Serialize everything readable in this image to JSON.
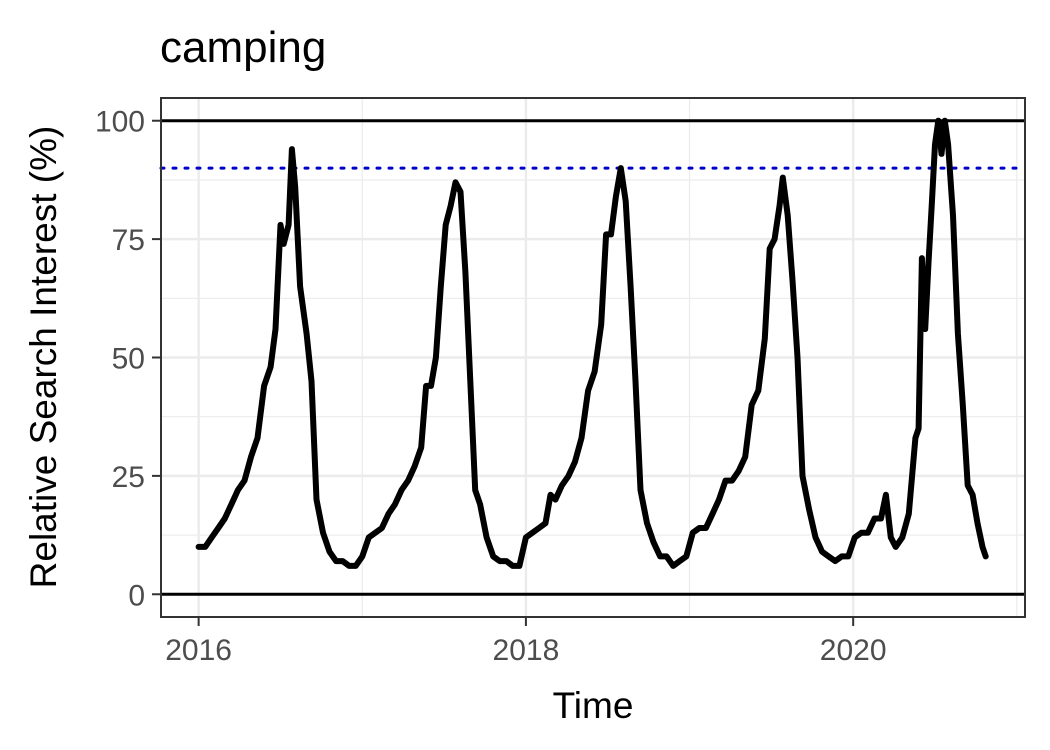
{
  "chart_data": {
    "type": "line",
    "title": "camping",
    "xlabel": "Time",
    "ylabel": "Relative Search Interest (%)",
    "x_ticks": [
      "2016",
      "2018",
      "2020"
    ],
    "y_ticks": [
      "0",
      "25",
      "50",
      "75",
      "100"
    ],
    "xlim": [
      2015.77,
      2021.05
    ],
    "ylim": [
      -4.8,
      104.8
    ],
    "grid": true,
    "reference_lines": [
      {
        "y": 100,
        "style": "solid",
        "color": "#000000"
      },
      {
        "y": 0,
        "style": "solid",
        "color": "#000000"
      },
      {
        "y": 90,
        "style": "dotted",
        "color": "#0000cc"
      }
    ],
    "series": [
      {
        "color": "#000000",
        "points": [
          [
            2016.0,
            10
          ],
          [
            2016.04,
            10
          ],
          [
            2016.08,
            12
          ],
          [
            2016.12,
            14
          ],
          [
            2016.16,
            16
          ],
          [
            2016.2,
            19
          ],
          [
            2016.24,
            22
          ],
          [
            2016.28,
            24
          ],
          [
            2016.32,
            29
          ],
          [
            2016.36,
            33
          ],
          [
            2016.4,
            44
          ],
          [
            2016.44,
            48
          ],
          [
            2016.47,
            56
          ],
          [
            2016.5,
            78
          ],
          [
            2016.52,
            74
          ],
          [
            2016.55,
            78
          ],
          [
            2016.57,
            94
          ],
          [
            2016.59,
            86
          ],
          [
            2016.62,
            65
          ],
          [
            2016.66,
            55
          ],
          [
            2016.69,
            45
          ],
          [
            2016.72,
            20
          ],
          [
            2016.76,
            13
          ],
          [
            2016.8,
            9
          ],
          [
            2016.84,
            7
          ],
          [
            2016.88,
            7
          ],
          [
            2016.92,
            6
          ],
          [
            2016.96,
            6
          ],
          [
            2017.0,
            8
          ],
          [
            2017.04,
            12
          ],
          [
            2017.08,
            13
          ],
          [
            2017.12,
            14
          ],
          [
            2017.16,
            17
          ],
          [
            2017.2,
            19
          ],
          [
            2017.24,
            22
          ],
          [
            2017.28,
            24
          ],
          [
            2017.32,
            27
          ],
          [
            2017.36,
            31
          ],
          [
            2017.39,
            44
          ],
          [
            2017.42,
            44
          ],
          [
            2017.45,
            50
          ],
          [
            2017.48,
            65
          ],
          [
            2017.51,
            78
          ],
          [
            2017.54,
            82
          ],
          [
            2017.57,
            87
          ],
          [
            2017.6,
            85
          ],
          [
            2017.63,
            68
          ],
          [
            2017.66,
            45
          ],
          [
            2017.69,
            22
          ],
          [
            2017.72,
            19
          ],
          [
            2017.76,
            12
          ],
          [
            2017.8,
            8
          ],
          [
            2017.84,
            7
          ],
          [
            2017.88,
            7
          ],
          [
            2017.92,
            6
          ],
          [
            2017.96,
            6
          ],
          [
            2018.0,
            12
          ],
          [
            2018.04,
            13
          ],
          [
            2018.08,
            14
          ],
          [
            2018.12,
            15
          ],
          [
            2018.15,
            21
          ],
          [
            2018.18,
            20
          ],
          [
            2018.22,
            23
          ],
          [
            2018.26,
            25
          ],
          [
            2018.3,
            28
          ],
          [
            2018.34,
            33
          ],
          [
            2018.38,
            43
          ],
          [
            2018.42,
            47
          ],
          [
            2018.46,
            57
          ],
          [
            2018.49,
            76
          ],
          [
            2018.52,
            76
          ],
          [
            2018.55,
            84
          ],
          [
            2018.58,
            90
          ],
          [
            2018.61,
            83
          ],
          [
            2018.64,
            65
          ],
          [
            2018.67,
            45
          ],
          [
            2018.7,
            22
          ],
          [
            2018.74,
            15
          ],
          [
            2018.78,
            11
          ],
          [
            2018.82,
            8
          ],
          [
            2018.86,
            8
          ],
          [
            2018.9,
            6
          ],
          [
            2018.94,
            7
          ],
          [
            2018.98,
            8
          ],
          [
            2019.02,
            13
          ],
          [
            2019.06,
            14
          ],
          [
            2019.1,
            14
          ],
          [
            2019.14,
            17
          ],
          [
            2019.18,
            20
          ],
          [
            2019.22,
            24
          ],
          [
            2019.26,
            24
          ],
          [
            2019.3,
            26
          ],
          [
            2019.34,
            29
          ],
          [
            2019.38,
            40
          ],
          [
            2019.42,
            43
          ],
          [
            2019.46,
            54
          ],
          [
            2019.49,
            73
          ],
          [
            2019.52,
            75
          ],
          [
            2019.55,
            82
          ],
          [
            2019.57,
            88
          ],
          [
            2019.6,
            80
          ],
          [
            2019.63,
            66
          ],
          [
            2019.66,
            50
          ],
          [
            2019.69,
            25
          ],
          [
            2019.73,
            18
          ],
          [
            2019.77,
            12
          ],
          [
            2019.81,
            9
          ],
          [
            2019.85,
            8
          ],
          [
            2019.89,
            7
          ],
          [
            2019.93,
            8
          ],
          [
            2019.97,
            8
          ],
          [
            2020.01,
            12
          ],
          [
            2020.05,
            13
          ],
          [
            2020.09,
            13
          ],
          [
            2020.13,
            16
          ],
          [
            2020.17,
            16
          ],
          [
            2020.2,
            21
          ],
          [
            2020.23,
            12
          ],
          [
            2020.26,
            10
          ],
          [
            2020.3,
            12
          ],
          [
            2020.34,
            17
          ],
          [
            2020.38,
            33
          ],
          [
            2020.4,
            35
          ],
          [
            2020.42,
            71
          ],
          [
            2020.44,
            56
          ],
          [
            2020.46,
            70
          ],
          [
            2020.48,
            82
          ],
          [
            2020.5,
            95
          ],
          [
            2020.52,
            100
          ],
          [
            2020.54,
            93
          ],
          [
            2020.56,
            100
          ],
          [
            2020.58,
            95
          ],
          [
            2020.61,
            80
          ],
          [
            2020.64,
            55
          ],
          [
            2020.67,
            40
          ],
          [
            2020.7,
            23
          ],
          [
            2020.73,
            21
          ],
          [
            2020.76,
            15
          ],
          [
            2020.79,
            10
          ],
          [
            2020.81,
            8
          ]
        ]
      }
    ]
  }
}
